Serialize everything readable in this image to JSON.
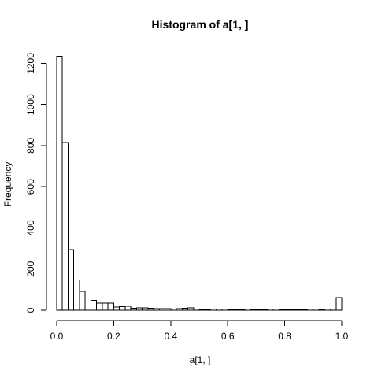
{
  "chart_data": {
    "type": "bar",
    "title": "Histogram of a[1, ]",
    "xlabel": "a[1, ]",
    "ylabel": "Frequency",
    "xlim": [
      0,
      1
    ],
    "ylim": [
      0,
      1240
    ],
    "bin_width": 0.02,
    "x_ticks": [
      "0.0",
      "0.2",
      "0.4",
      "0.6",
      "0.8",
      "1.0"
    ],
    "y_ticks": [
      "0",
      "200",
      "400",
      "600",
      "800",
      "1000",
      "1200"
    ],
    "grid": false,
    "values": [
      1235,
      815,
      295,
      148,
      92,
      60,
      48,
      35,
      35,
      35,
      15,
      18,
      20,
      10,
      12,
      12,
      10,
      8,
      8,
      8,
      5,
      8,
      10,
      12,
      5,
      3,
      3,
      5,
      5,
      5,
      3,
      3,
      3,
      5,
      3,
      3,
      3,
      5,
      5,
      3,
      3,
      3,
      3,
      3,
      5,
      5,
      3,
      5,
      5,
      62
    ]
  }
}
